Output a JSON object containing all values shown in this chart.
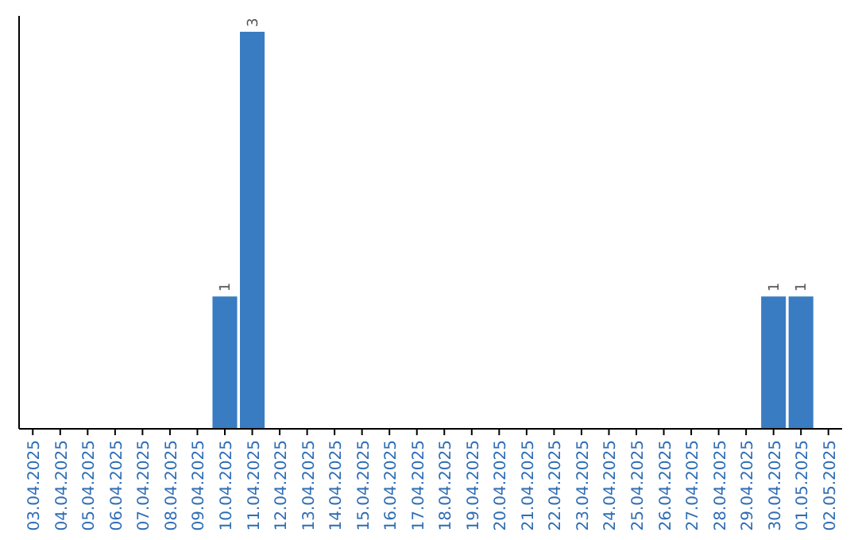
{
  "chart_data": {
    "type": "bar",
    "categories": [
      "03.04.2025",
      "04.04.2025",
      "05.04.2025",
      "06.04.2025",
      "07.04.2025",
      "08.04.2025",
      "09.04.2025",
      "10.04.2025",
      "11.04.2025",
      "12.04.2025",
      "13.04.2025",
      "14.04.2025",
      "15.04.2025",
      "16.04.2025",
      "17.04.2025",
      "18.04.2025",
      "19.04.2025",
      "20.04.2025",
      "21.04.2025",
      "22.04.2025",
      "23.04.2025",
      "24.04.2025",
      "25.04.2025",
      "26.04.2025",
      "27.04.2025",
      "28.04.2025",
      "29.04.2025",
      "30.04.2025",
      "01.05.2025",
      "02.05.2025"
    ],
    "values": [
      0,
      0,
      0,
      0,
      0,
      0,
      0,
      1,
      3,
      0,
      0,
      0,
      0,
      0,
      0,
      0,
      0,
      0,
      0,
      0,
      0,
      0,
      0,
      0,
      0,
      0,
      0,
      1,
      1,
      0
    ],
    "value_labels": [
      null,
      null,
      null,
      null,
      null,
      null,
      null,
      "1",
      "3",
      null,
      null,
      null,
      null,
      null,
      null,
      null,
      null,
      null,
      null,
      null,
      null,
      null,
      null,
      null,
      null,
      null,
      null,
      "1",
      "1",
      null
    ],
    "color": "#3a7cc2",
    "tick_labels": "x"
  }
}
